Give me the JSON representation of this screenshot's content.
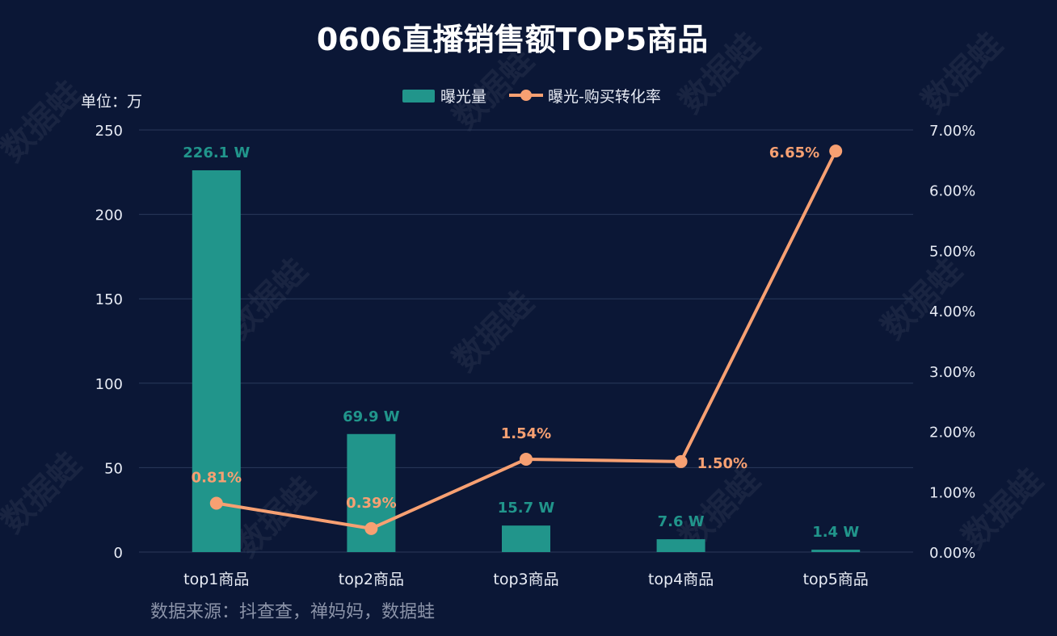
{
  "title": "0606直播销售额TOP5商品",
  "unit_label": "单位：万",
  "source": "数据来源：抖查查，禅妈妈，数据蛙",
  "watermark": "数据蛙",
  "colors": {
    "background": "#0b1736",
    "bar": "#21958b",
    "line": "#f7a072",
    "grid": "#2b3a5b",
    "text": "#e8ecf5",
    "source": "#8b93a8"
  },
  "chart_data": {
    "type": "bar",
    "title": "0606直播销售额TOP5商品",
    "categories": [
      "top1商品",
      "top2商品",
      "top3商品",
      "top4商品",
      "top5商品"
    ],
    "legend_position": "top-center",
    "grid": true,
    "series": [
      {
        "name": "曝光量",
        "type": "bar",
        "axis": "left",
        "values": [
          226.1,
          69.9,
          15.7,
          7.6,
          1.4
        ],
        "labels": [
          "226.1 W",
          "69.9 W",
          "15.7 W",
          "7.6 W",
          "1.4 W"
        ]
      },
      {
        "name": "曝光-购买转化率",
        "type": "line",
        "axis": "right",
        "values": [
          0.81,
          0.39,
          1.54,
          1.5,
          6.65
        ],
        "labels": [
          "0.81%",
          "0.39%",
          "1.54%",
          "1.50%",
          "6.65%"
        ]
      }
    ],
    "y_left": {
      "ylim": [
        0,
        250
      ],
      "ticks": [
        "0",
        "50",
        "100",
        "150",
        "200",
        "250"
      ],
      "tick_values": [
        0,
        50,
        100,
        150,
        200,
        250
      ]
    },
    "y_right": {
      "ylim": [
        0,
        7
      ],
      "ticks": [
        "0.00%",
        "1.00%",
        "2.00%",
        "3.00%",
        "4.00%",
        "5.00%",
        "6.00%",
        "7.00%"
      ],
      "tick_values": [
        0,
        1,
        2,
        3,
        4,
        5,
        6,
        7
      ]
    }
  }
}
